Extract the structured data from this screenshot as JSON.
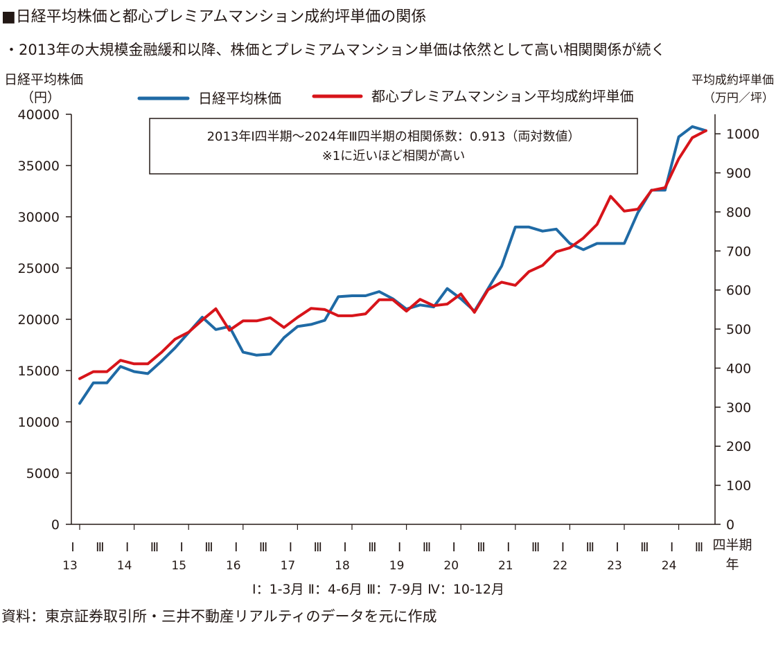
{
  "title": "■日経平均株価と都心プレミアムマンション成約坪単価の関係",
  "subtitle": "・2013年の大規模金融緩和以降、株価とプレミアムマンション単価は依然として高い相関関係が続く",
  "source": "資料：東京証券取引所・三井不動産リアルティのデータを元に作成",
  "colors": {
    "nikkei": "#1f6aa5",
    "mansion": "#d7141a",
    "axis": "#231815"
  },
  "chart_data": {
    "type": "line",
    "left_axis": {
      "label_line1": "日経平均株価",
      "label_line2": "（円）",
      "range": [
        0,
        40000
      ],
      "ticks": [
        "0",
        "5000",
        "10000",
        "15000",
        "20000",
        "25000",
        "30000",
        "35000",
        "40000"
      ]
    },
    "right_axis": {
      "label_line1": "平均成約坪単価",
      "label_line2": "（万円／坪）",
      "range": [
        0,
        1050
      ],
      "ticks": [
        "0",
        "100",
        "200",
        "300",
        "400",
        "500",
        "600",
        "700",
        "800",
        "900",
        "1000"
      ]
    },
    "x_axis": {
      "quarter_label": "四半期",
      "year_label": "年",
      "years": [
        "13",
        "14",
        "15",
        "16",
        "17",
        "18",
        "19",
        "20",
        "21",
        "22",
        "23",
        "24"
      ],
      "quarter_marks": [
        "Ⅰ",
        "Ⅲ"
      ],
      "legend_note": "Ⅰ：1-3月  Ⅱ：4-6月  Ⅲ：7-9月  Ⅳ：10-12月"
    },
    "annotation": {
      "line1": "2013年Ⅰ四半期～2024年Ⅲ四半期の相関係数：0.913（両対数値）",
      "line2": "※1に近いほど相関が高い"
    },
    "series": [
      {
        "name": "日経平均株価",
        "axis": "left",
        "values": [
          11800,
          13800,
          13800,
          15400,
          14900,
          14700,
          15900,
          17200,
          18700,
          20200,
          19000,
          19300,
          16800,
          16500,
          16600,
          18200,
          19300,
          19500,
          19900,
          22200,
          22300,
          22300,
          22700,
          22000,
          21000,
          21400,
          21200,
          23000,
          22000,
          20800,
          23000,
          25200,
          29000,
          29000,
          28600,
          28800,
          27400,
          26800,
          27400,
          27400,
          27400,
          30400,
          32600,
          32600,
          37800,
          38800,
          38400
        ]
      },
      {
        "name": "都心プレミアムマンション平均成約坪単価",
        "axis": "right",
        "values": [
          373,
          391,
          391,
          420,
          411,
          411,
          440,
          474,
          492,
          523,
          552,
          497,
          521,
          521,
          529,
          504,
          530,
          553,
          550,
          534,
          534,
          539,
          575,
          575,
          546,
          576,
          560,
          564,
          590,
          543,
          601,
          620,
          612,
          647,
          663,
          698,
          708,
          733,
          768,
          840,
          802,
          807,
          855,
          862,
          936,
          990,
          1008
        ]
      }
    ]
  }
}
